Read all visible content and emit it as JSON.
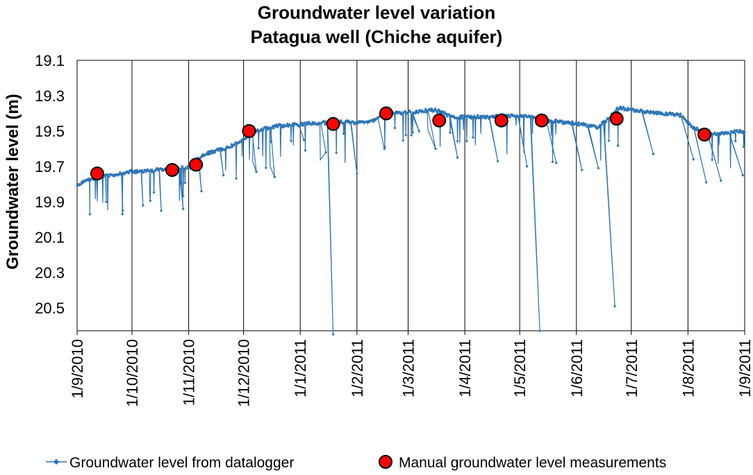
{
  "chart_data": {
    "type": "line",
    "title": "Groundwater level variation",
    "subtitle": "Patagua well (Chiche aquifer)",
    "xlabel": "",
    "ylabel": "Groundwater level (m)",
    "ylim": [
      19.1,
      20.6
    ],
    "y_inverted": true,
    "y_ticks": [
      "19.1",
      "19.3",
      "19.5",
      "19.7",
      "19.9",
      "20.1",
      "20.3",
      "20.5"
    ],
    "x_ticks": [
      "1/9/2010",
      "1/10/2010",
      "1/11/2010",
      "1/12/2010",
      "1/1/2011",
      "1/2/2011",
      "1/3/2011",
      "1/4/2011",
      "1/5/2011",
      "1/6/2011",
      "1/7/2011",
      "1/8/2011",
      "1/9/2011"
    ],
    "x_range_days": [
      0,
      365
    ],
    "grid": "vertical",
    "legend_position": "bottom",
    "series": [
      {
        "name": "Groundwater level from datalogger",
        "style": "line-with-small-diamonds",
        "color": "#2E75B6",
        "trend": [
          {
            "day": 0,
            "level": 19.81
          },
          {
            "day": 5,
            "level": 19.78
          },
          {
            "day": 12,
            "level": 19.76
          },
          {
            "day": 20,
            "level": 19.75
          },
          {
            "day": 30,
            "level": 19.73
          },
          {
            "day": 45,
            "level": 19.72
          },
          {
            "day": 55,
            "level": 19.71
          },
          {
            "day": 63,
            "level": 19.7
          },
          {
            "day": 66,
            "level": 19.66
          },
          {
            "day": 70,
            "level": 19.63
          },
          {
            "day": 80,
            "level": 19.6
          },
          {
            "day": 88,
            "level": 19.57
          },
          {
            "day": 92,
            "level": 19.54
          },
          {
            "day": 96,
            "level": 19.5
          },
          {
            "day": 110,
            "level": 19.47
          },
          {
            "day": 125,
            "level": 19.46
          },
          {
            "day": 140,
            "level": 19.45
          },
          {
            "day": 160,
            "level": 19.45
          },
          {
            "day": 165,
            "level": 19.42
          },
          {
            "day": 170,
            "level": 19.4
          },
          {
            "day": 185,
            "level": 19.39
          },
          {
            "day": 196,
            "level": 19.38
          },
          {
            "day": 205,
            "level": 19.42
          },
          {
            "day": 225,
            "level": 19.42
          },
          {
            "day": 245,
            "level": 19.41
          },
          {
            "day": 257,
            "level": 19.44
          },
          {
            "day": 275,
            "level": 19.46
          },
          {
            "day": 285,
            "level": 19.48
          },
          {
            "day": 296,
            "level": 19.37
          },
          {
            "day": 310,
            "level": 19.39
          },
          {
            "day": 330,
            "level": 19.41
          },
          {
            "day": 337,
            "level": 19.48
          },
          {
            "day": 345,
            "level": 19.52
          },
          {
            "day": 365,
            "level": 19.5
          }
        ],
        "dips": [
          {
            "day": 7,
            "level": 19.97
          },
          {
            "day": 16,
            "level": 19.9
          },
          {
            "day": 25,
            "level": 19.95
          },
          {
            "day": 36,
            "level": 19.92
          },
          {
            "day": 46,
            "level": 19.95
          },
          {
            "day": 58,
            "level": 19.94
          },
          {
            "day": 68,
            "level": 19.84
          },
          {
            "day": 80,
            "level": 19.75
          },
          {
            "day": 98,
            "level": 19.73
          },
          {
            "day": 108,
            "level": 19.76
          },
          {
            "day": 124,
            "level": 19.55
          },
          {
            "day": 136,
            "level": 19.62
          },
          {
            "day": 140,
            "level": 20.65
          },
          {
            "day": 153,
            "level": 19.74
          },
          {
            "day": 168,
            "level": 19.6
          },
          {
            "day": 187,
            "level": 19.5
          },
          {
            "day": 196,
            "level": 19.6
          },
          {
            "day": 208,
            "level": 19.65
          },
          {
            "day": 230,
            "level": 19.67
          },
          {
            "day": 246,
            "level": 19.7
          },
          {
            "day": 253,
            "level": 20.63
          },
          {
            "day": 262,
            "level": 19.68
          },
          {
            "day": 276,
            "level": 19.72
          },
          {
            "day": 285,
            "level": 19.71
          },
          {
            "day": 294,
            "level": 20.49
          },
          {
            "day": 315,
            "level": 19.63
          },
          {
            "day": 337,
            "level": 19.66
          },
          {
            "day": 344,
            "level": 19.79
          },
          {
            "day": 352,
            "level": 19.78
          },
          {
            "day": 364,
            "level": 19.75
          }
        ]
      },
      {
        "name": "Manual groundwater level measurements",
        "style": "red-circles",
        "color": "#FF0000",
        "points": [
          {
            "day": 11,
            "level": 19.74
          },
          {
            "day": 52,
            "level": 19.72
          },
          {
            "day": 65,
            "level": 19.69
          },
          {
            "day": 94,
            "level": 19.5
          },
          {
            "day": 140,
            "level": 19.46
          },
          {
            "day": 169,
            "level": 19.4
          },
          {
            "day": 198,
            "level": 19.44
          },
          {
            "day": 232,
            "level": 19.44
          },
          {
            "day": 254,
            "level": 19.44
          },
          {
            "day": 295,
            "level": 19.43
          },
          {
            "day": 343,
            "level": 19.52
          }
        ]
      }
    ]
  }
}
